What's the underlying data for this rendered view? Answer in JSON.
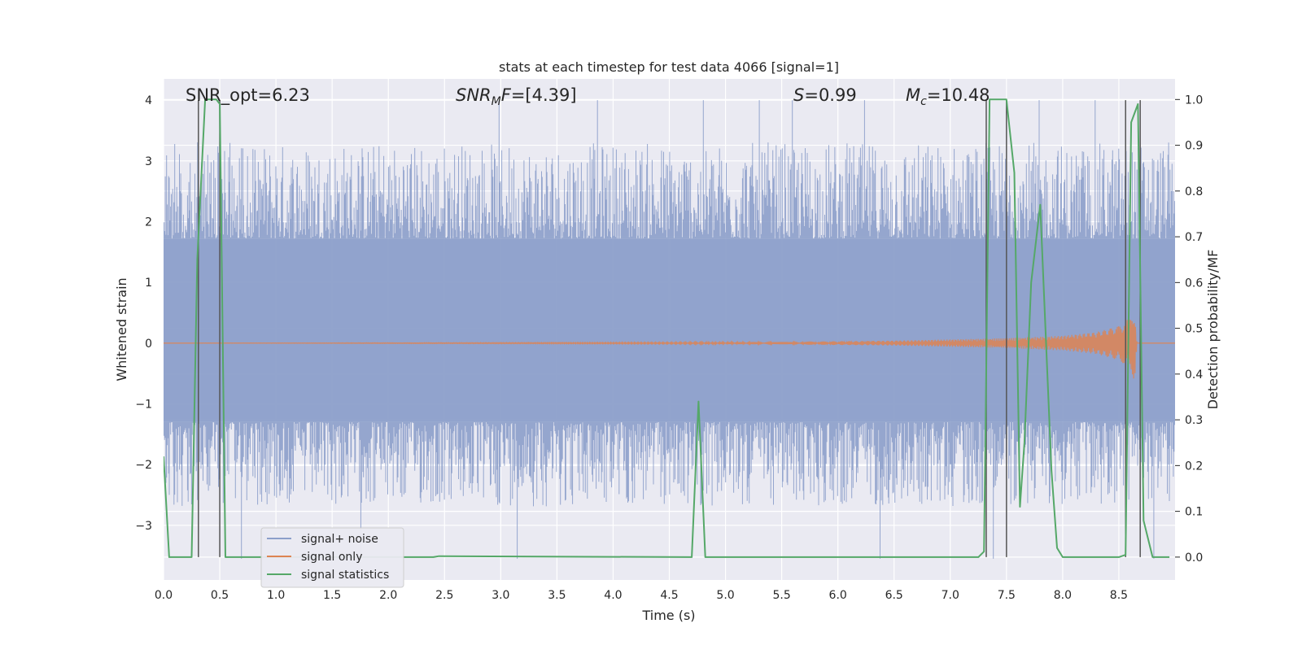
{
  "chart_data": {
    "type": "line",
    "title": "stats at each timestep for test data 4066 [signal=1]",
    "xlabel": "Time (s)",
    "ylabel": "Whitened strain",
    "ylabel_right": "Detection probability/MF",
    "xlim": [
      0,
      9.0
    ],
    "ylim": [
      -3.9,
      4.35
    ],
    "ylim_right": [
      -0.05,
      1.045
    ],
    "x_ticks": [
      "0.0",
      "0.5",
      "1.0",
      "1.5",
      "2.0",
      "2.5",
      "3.0",
      "3.5",
      "4.0",
      "4.5",
      "5.0",
      "5.5",
      "6.0",
      "6.5",
      "7.0",
      "7.5",
      "8.0",
      "8.5"
    ],
    "x_tick_values": [
      0,
      0.5,
      1,
      1.5,
      2,
      2.5,
      3,
      3.5,
      4,
      4.5,
      5,
      5.5,
      6,
      6.5,
      7,
      7.5,
      8,
      8.5
    ],
    "y_ticks": [
      "−3",
      "−2",
      "−1",
      "0",
      "1",
      "2",
      "3",
      "4"
    ],
    "y_tick_values": [
      -3,
      -2,
      -1,
      0,
      1,
      2,
      3,
      4
    ],
    "y_right_ticks": [
      "0.0",
      "0.1",
      "0.2",
      "0.3",
      "0.4",
      "0.5",
      "0.6",
      "0.7",
      "0.8",
      "0.9",
      "1.0"
    ],
    "y_right_tick_values": [
      0,
      0.1,
      0.2,
      0.3,
      0.4,
      0.5,
      0.6,
      0.7,
      0.8,
      0.9,
      1.0
    ],
    "annotations": [
      {
        "id": "snr-opt",
        "text": "SNR_opt=6.23",
        "x": 0.2,
        "y": 4.05
      },
      {
        "id": "snr-mf",
        "text": "[4.39]",
        "x": 2.6,
        "y": 4.05
      },
      {
        "id": "s-value",
        "text": "=0.99",
        "x": 5.6,
        "y": 4.05
      },
      {
        "id": "mc-value",
        "text": "=10.48",
        "x": 6.6,
        "y": 4.05
      }
    ],
    "annotation_math": {
      "snr_mf_prefix": "SNR",
      "snr_mf_sub": "M",
      "snr_mf_suffix": "F=",
      "s_symbol": "S",
      "mc_symbol": "M",
      "mc_sub": "c"
    },
    "vlines": [
      0.31,
      0.5,
      7.32,
      7.5,
      8.56,
      8.69
    ],
    "noise": {
      "name": "signal+ noise",
      "color": "#8c9fca",
      "core_low": -1.3,
      "core_high": 1.72,
      "spikes_max_high": 4.0,
      "spikes_min_low": -3.55
    },
    "signal": {
      "name": "signal only",
      "color": "#dd8452",
      "x": [
        0.0,
        4.5,
        5.5,
        6.5,
        7.0,
        7.5,
        8.0,
        8.3,
        8.5,
        8.6,
        8.64,
        8.66,
        9.0
      ],
      "amp": [
        0.0,
        0.01,
        0.02,
        0.04,
        0.06,
        0.08,
        0.12,
        0.18,
        0.28,
        0.42,
        0.62,
        0.0,
        0.0
      ]
    },
    "series": [
      {
        "name": "signal statistics",
        "color": "#55a868",
        "axis": "right",
        "x": [
          0.0,
          0.05,
          0.25,
          0.3,
          0.37,
          0.47,
          0.5,
          0.55,
          2.4,
          2.45,
          4.7,
          4.76,
          4.82,
          6.9,
          7.25,
          7.3,
          7.35,
          7.38,
          7.5,
          7.57,
          7.62,
          7.66,
          7.72,
          7.8,
          7.9,
          7.95,
          8.0,
          8.5,
          8.56,
          8.61,
          8.67,
          8.72,
          8.8,
          8.95
        ],
        "values": [
          0.22,
          0.0,
          0.0,
          0.65,
          1.0,
          1.0,
          0.99,
          0.0,
          0.0,
          0.002,
          0.0,
          0.34,
          0.0,
          0.0,
          0.0,
          0.012,
          1.0,
          1.0,
          1.0,
          0.84,
          0.11,
          0.25,
          0.6,
          0.77,
          0.19,
          0.02,
          0.0,
          0.0,
          0.005,
          0.95,
          0.99,
          0.08,
          0.0,
          0.0
        ]
      }
    ],
    "legend": {
      "position": "lower-left",
      "entries": [
        "signal+ noise",
        "signal only",
        "signal statistics"
      ]
    },
    "grid": true,
    "colors": {
      "axes_bg": "#eaeaf2",
      "grid": "#ffffff",
      "vline": "#555555",
      "text": "#262626"
    }
  }
}
